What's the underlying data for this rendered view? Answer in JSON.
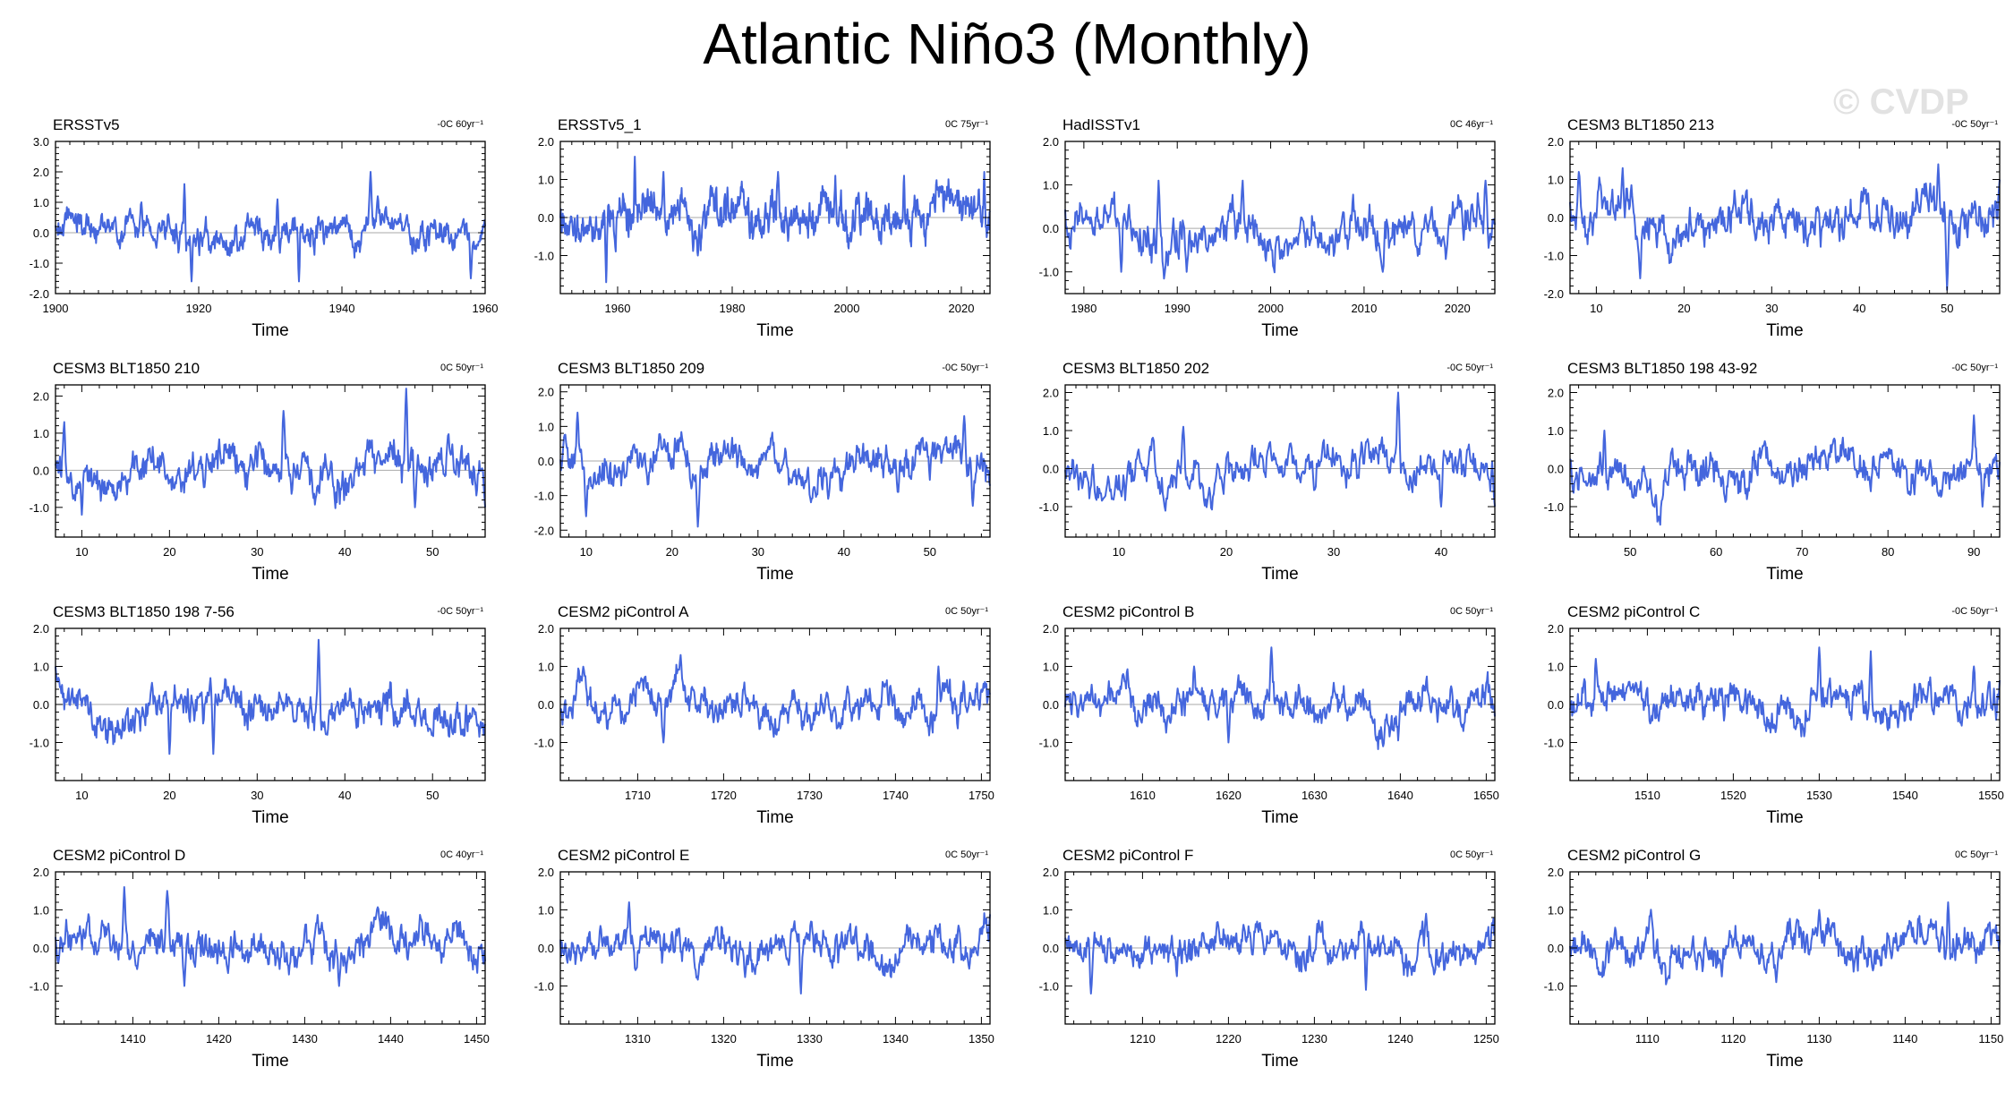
{
  "title": "Atlantic Niño3 (Monthly)",
  "watermark": "© CVDP",
  "colors": {
    "line": "#4466dd",
    "zero": "#aaaaaa",
    "axis": "#000000"
  },
  "chart_data": [
    {
      "type": "line",
      "title": "ERSSTv5",
      "note": "-0C 60yr⁻¹",
      "xlabel": "Time",
      "xlim": [
        1900,
        1960
      ],
      "xticks": [
        1900,
        1920,
        1940,
        1960
      ],
      "ylim": [
        -2.0,
        3.0
      ],
      "yticks": [
        -2.0,
        -1.0,
        0.0,
        1.0,
        2.0,
        3.0
      ],
      "seed": 11,
      "amp": 0.42,
      "peaks": [
        [
          1918,
          1.6
        ],
        [
          1919,
          -1.6
        ],
        [
          1944,
          2.0
        ],
        [
          1945,
          1.2
        ],
        [
          1912,
          1.0
        ],
        [
          1931,
          1.1
        ],
        [
          1934,
          -1.6
        ],
        [
          1958,
          -1.5
        ]
      ]
    },
    {
      "type": "line",
      "title": "ERSSTv5_1",
      "note": "0C 75yr⁻¹",
      "xlabel": "Time",
      "xlim": [
        1950,
        2025
      ],
      "xticks": [
        1960,
        1980,
        2000,
        2020
      ],
      "ylim": [
        -2.0,
        2.0
      ],
      "yticks": [
        -1.0,
        0.0,
        1.0,
        2.0
      ],
      "seed": 23,
      "amp": 0.42,
      "peaks": [
        [
          1963,
          1.6
        ],
        [
          1958,
          -1.7
        ],
        [
          1968,
          1.2
        ],
        [
          1974,
          -1.0
        ],
        [
          1988,
          1.2
        ],
        [
          1998,
          1.1
        ],
        [
          2010,
          1.1
        ],
        [
          2024,
          1.2
        ]
      ]
    },
    {
      "type": "line",
      "title": "HadISSTv1",
      "note": "0C 46yr⁻¹",
      "xlabel": "Time",
      "xlim": [
        1978,
        2024
      ],
      "xticks": [
        1980,
        1990,
        2000,
        2010,
        2020
      ],
      "ylim": [
        -1.5,
        2.0
      ],
      "yticks": [
        -1.0,
        0.0,
        1.0,
        2.0
      ],
      "seed": 37,
      "amp": 0.4,
      "peaks": [
        [
          1984,
          -1.0
        ],
        [
          1988,
          1.1
        ],
        [
          1991,
          -1.0
        ],
        [
          1997,
          1.1
        ],
        [
          2023,
          1.1
        ],
        [
          2012,
          -1.0
        ]
      ]
    },
    {
      "type": "line",
      "title": "CESM3 BLT1850 213",
      "note": "-0C 50yr⁻¹",
      "xlabel": "Time",
      "xlim": [
        7,
        56
      ],
      "xticks": [
        10,
        20,
        30,
        40,
        50
      ],
      "ylim": [
        -2.0,
        2.0
      ],
      "yticks": [
        -2.0,
        -1.0,
        0.0,
        1.0,
        2.0
      ],
      "seed": 41,
      "amp": 0.45,
      "peaks": [
        [
          8,
          1.2
        ],
        [
          13,
          1.3
        ],
        [
          15,
          -1.6
        ],
        [
          49,
          1.4
        ],
        [
          50,
          -1.9
        ],
        [
          56,
          1.0
        ]
      ]
    },
    {
      "type": "line",
      "title": "CESM3 BLT1850 210",
      "note": "0C 50yr⁻¹",
      "xlabel": "Time",
      "xlim": [
        7,
        56
      ],
      "xticks": [
        10,
        20,
        30,
        40,
        50
      ],
      "ylim": [
        -1.8,
        2.3
      ],
      "yticks": [
        -1.0,
        0.0,
        1.0,
        2.0
      ],
      "seed": 53,
      "amp": 0.42,
      "peaks": [
        [
          8,
          1.3
        ],
        [
          10,
          -1.2
        ],
        [
          33,
          1.6
        ],
        [
          47,
          2.2
        ],
        [
          48,
          -1.0
        ],
        [
          56,
          -1.0
        ]
      ]
    },
    {
      "type": "line",
      "title": "CESM3 BLT1850 209",
      "note": "-0C 50yr⁻¹",
      "xlabel": "Time",
      "xlim": [
        7,
        57
      ],
      "xticks": [
        10,
        20,
        30,
        40,
        50
      ],
      "ylim": [
        -2.2,
        2.2
      ],
      "yticks": [
        -2.0,
        -1.0,
        0.0,
        1.0,
        2.0
      ],
      "seed": 67,
      "amp": 0.45,
      "peaks": [
        [
          9,
          1.4
        ],
        [
          10,
          -1.6
        ],
        [
          23,
          -1.9
        ],
        [
          54,
          1.3
        ],
        [
          55,
          -1.3
        ]
      ]
    },
    {
      "type": "line",
      "title": "CESM3 BLT1850 202",
      "note": "-0C 50yr⁻¹",
      "xlabel": "Time",
      "xlim": [
        5,
        45
      ],
      "xticks": [
        10,
        20,
        30,
        40
      ],
      "ylim": [
        -1.8,
        2.2
      ],
      "yticks": [
        -1.0,
        0.0,
        1.0,
        2.0
      ],
      "seed": 71,
      "amp": 0.42,
      "peaks": [
        [
          16,
          1.1
        ],
        [
          36,
          2.0
        ],
        [
          40,
          -1.0
        ],
        [
          45,
          -1.0
        ]
      ]
    },
    {
      "type": "line",
      "title": "CESM3 BLT1850 198 43-92",
      "note": "-0C 50yr⁻¹",
      "xlabel": "Time",
      "xlim": [
        43,
        93
      ],
      "xticks": [
        50,
        60,
        70,
        80,
        90
      ],
      "ylim": [
        -1.8,
        2.2
      ],
      "yticks": [
        -1.0,
        0.0,
        1.0,
        2.0
      ],
      "seed": 83,
      "amp": 0.4,
      "peaks": [
        [
          47,
          1.0
        ],
        [
          90,
          1.4
        ],
        [
          91,
          -1.0
        ]
      ]
    },
    {
      "type": "line",
      "title": "CESM3 BLT1850 198 7-56",
      "note": "-0C 50yr⁻¹",
      "xlabel": "Time",
      "xlim": [
        7,
        56
      ],
      "xticks": [
        10,
        20,
        30,
        40,
        50
      ],
      "ylim": [
        -2.0,
        2.0
      ],
      "yticks": [
        -1.0,
        0.0,
        1.0,
        2.0
      ],
      "seed": 97,
      "amp": 0.42,
      "peaks": [
        [
          7,
          1.0
        ],
        [
          20,
          -1.3
        ],
        [
          37,
          1.7
        ],
        [
          25,
          -1.3
        ]
      ]
    },
    {
      "type": "line",
      "title": "CESM2 piControl A",
      "note": "0C 50yr⁻¹",
      "xlabel": "Time",
      "xlim": [
        1701,
        1751
      ],
      "xticks": [
        1710,
        1720,
        1730,
        1740,
        1750
      ],
      "ylim": [
        -2.0,
        2.0
      ],
      "yticks": [
        -1.0,
        0.0,
        1.0,
        2.0
      ],
      "seed": 103,
      "amp": 0.38,
      "peaks": [
        [
          1715,
          1.3
        ],
        [
          1713,
          -1.0
        ],
        [
          1745,
          1.0
        ]
      ]
    },
    {
      "type": "line",
      "title": "CESM2 piControl B",
      "note": "0C 50yr⁻¹",
      "xlabel": "Time",
      "xlim": [
        1601,
        1651
      ],
      "xticks": [
        1610,
        1620,
        1630,
        1640,
        1650
      ],
      "ylim": [
        -2.0,
        2.0
      ],
      "yticks": [
        -1.0,
        0.0,
        1.0,
        2.0
      ],
      "seed": 109,
      "amp": 0.38,
      "peaks": [
        [
          1625,
          1.5
        ],
        [
          1616,
          1.0
        ],
        [
          1638,
          -1.1
        ],
        [
          1620,
          -1.0
        ]
      ]
    },
    {
      "type": "line",
      "title": "CESM2 piControl C",
      "note": "-0C 50yr⁻¹",
      "xlabel": "Time",
      "xlim": [
        1501,
        1551
      ],
      "xticks": [
        1510,
        1520,
        1530,
        1540,
        1550
      ],
      "ylim": [
        -2.0,
        2.0
      ],
      "yticks": [
        -1.0,
        0.0,
        1.0,
        2.0
      ],
      "seed": 113,
      "amp": 0.4,
      "peaks": [
        [
          1530,
          1.5
        ],
        [
          1536,
          1.4
        ],
        [
          1548,
          1.0
        ],
        [
          1504,
          1.2
        ]
      ]
    },
    {
      "type": "line",
      "title": "CESM2 piControl D",
      "note": "0C 40yr⁻¹",
      "xlabel": "Time",
      "xlim": [
        1401,
        1451
      ],
      "xticks": [
        1410,
        1420,
        1430,
        1440,
        1450
      ],
      "ylim": [
        -2.0,
        2.0
      ],
      "yticks": [
        -1.0,
        0.0,
        1.0,
        2.0
      ],
      "seed": 127,
      "amp": 0.38,
      "peaks": [
        [
          1409,
          1.6
        ],
        [
          1414,
          1.5
        ],
        [
          1434,
          -1.0
        ],
        [
          1416,
          -1.0
        ]
      ]
    },
    {
      "type": "line",
      "title": "CESM2 piControl E",
      "note": "0C 50yr⁻¹",
      "xlabel": "Time",
      "xlim": [
        1301,
        1351
      ],
      "xticks": [
        1310,
        1320,
        1330,
        1340,
        1350
      ],
      "ylim": [
        -2.0,
        2.0
      ],
      "yticks": [
        -1.0,
        0.0,
        1.0,
        2.0
      ],
      "seed": 131,
      "amp": 0.38,
      "peaks": [
        [
          1329,
          -1.2
        ],
        [
          1309,
          1.2
        ]
      ]
    },
    {
      "type": "line",
      "title": "CESM2 piControl F",
      "note": "0C 50yr⁻¹",
      "xlabel": "Time",
      "xlim": [
        1201,
        1251
      ],
      "xticks": [
        1210,
        1220,
        1230,
        1240,
        1250
      ],
      "ylim": [
        -2.0,
        2.0
      ],
      "yticks": [
        -1.0,
        0.0,
        1.0,
        2.0
      ],
      "seed": 137,
      "amp": 0.36,
      "peaks": [
        [
          1204,
          -1.2
        ],
        [
          1236,
          -1.1
        ],
        [
          1243,
          0.9
        ]
      ]
    },
    {
      "type": "line",
      "title": "CESM2 piControl G",
      "note": "0C 50yr⁻¹",
      "xlabel": "Time",
      "xlim": [
        1101,
        1151
      ],
      "xticks": [
        1110,
        1120,
        1130,
        1140,
        1150
      ],
      "ylim": [
        -2.0,
        2.0
      ],
      "yticks": [
        -1.0,
        0.0,
        1.0,
        2.0
      ],
      "seed": 149,
      "amp": 0.38,
      "peaks": [
        [
          1145,
          1.2
        ],
        [
          1130,
          1.0
        ],
        [
          1125,
          -0.9
        ]
      ]
    }
  ]
}
